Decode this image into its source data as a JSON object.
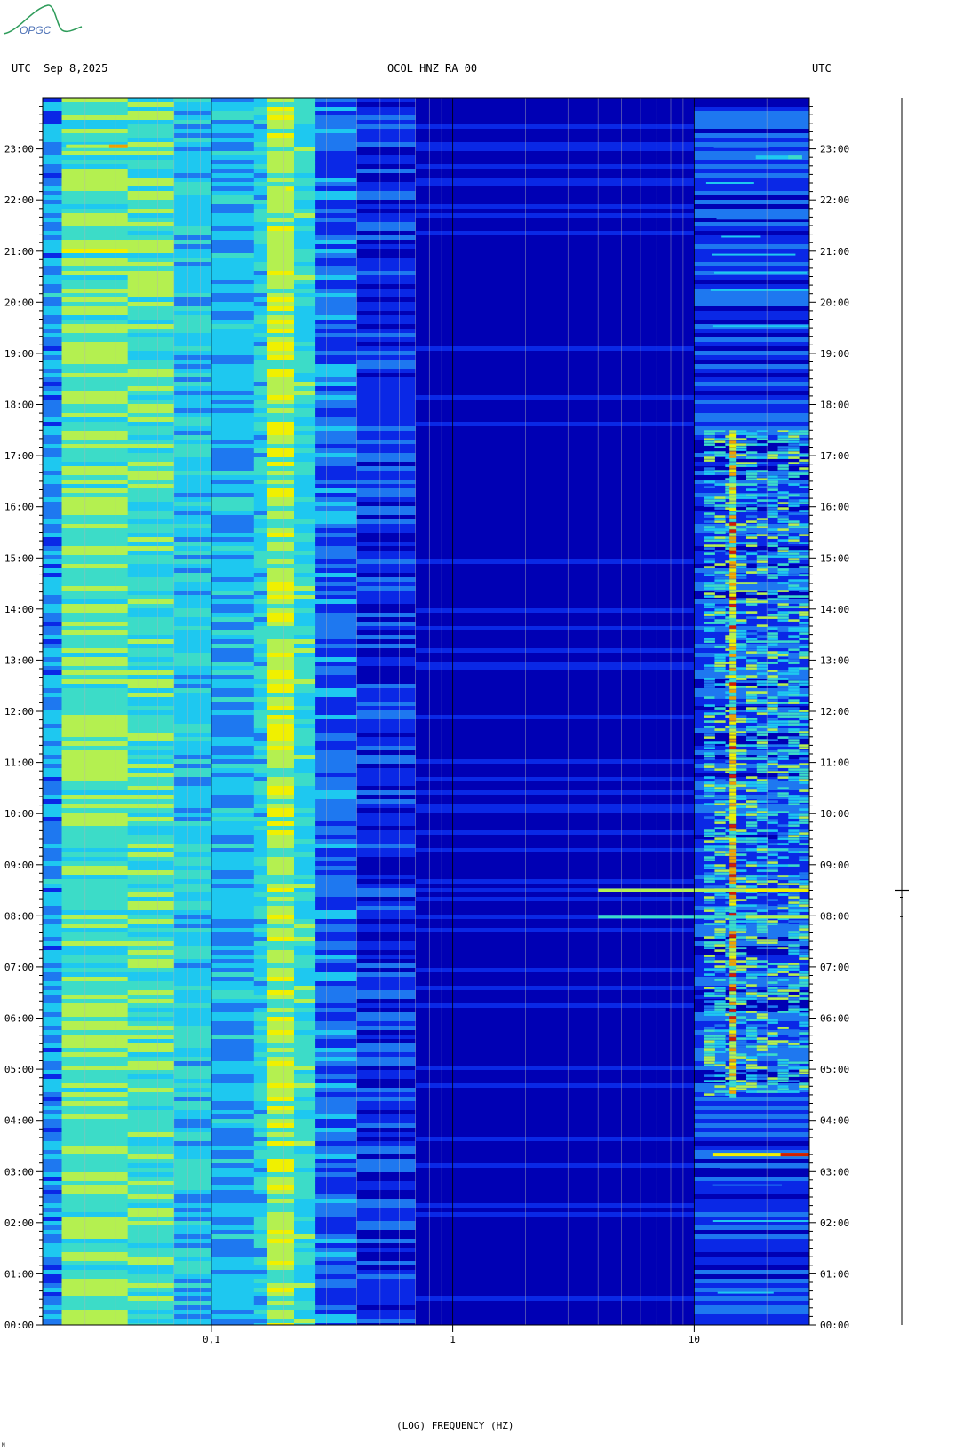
{
  "header": {
    "left": "UTC  Sep 8,2025",
    "center": "OCOL HNZ RA 00",
    "right": "UTC"
  },
  "logo": {
    "text": "OPGC",
    "color": "#2e9c5a",
    "text_color": "#4a6fb5"
  },
  "footer_mark": "M",
  "chart_data": {
    "type": "heatmap",
    "title": "OCOL HNZ RA 00",
    "xlabel": "(LOG) FREQUENCY (HZ)",
    "ylabel": "",
    "x_scale": "log",
    "xlim_hz": [
      0.02,
      30
    ],
    "x_ticks": [
      {
        "value": 0.1,
        "label": "0,1"
      },
      {
        "value": 1,
        "label": "1"
      },
      {
        "value": 10,
        "label": "10"
      }
    ],
    "ylim_hours": [
      0,
      24
    ],
    "y_ticks": [
      "00:00",
      "01:00",
      "02:00",
      "03:00",
      "04:00",
      "05:00",
      "06:00",
      "07:00",
      "08:00",
      "09:00",
      "10:00",
      "11:00",
      "12:00",
      "13:00",
      "14:00",
      "15:00",
      "16:00",
      "17:00",
      "18:00",
      "19:00",
      "20:00",
      "21:00",
      "22:00",
      "23:00"
    ],
    "colormap": [
      "#0000b4",
      "#0a28e6",
      "#1e78f0",
      "#1ec8f0",
      "#3cdcc8",
      "#b4f050",
      "#f0f000",
      "#f0a000",
      "#d21e00"
    ],
    "background_color": "#0000c8",
    "bands": [
      {
        "f1": 0.02,
        "f2": 0.024,
        "level": 0.3
      },
      {
        "f1": 0.024,
        "f2": 0.045,
        "level": 0.55
      },
      {
        "f1": 0.045,
        "f2": 0.07,
        "level": 0.5
      },
      {
        "f1": 0.07,
        "f2": 0.1,
        "level": 0.4
      },
      {
        "f1": 0.1,
        "f2": 0.15,
        "level": 0.33
      },
      {
        "f1": 0.15,
        "f2": 0.17,
        "level": 0.42
      },
      {
        "f1": 0.17,
        "f2": 0.22,
        "level": 0.62
      },
      {
        "f1": 0.22,
        "f2": 0.27,
        "level": 0.45
      },
      {
        "f1": 0.27,
        "f2": 0.4,
        "level": 0.22
      },
      {
        "f1": 0.4,
        "f2": 0.7,
        "level": 0.12
      },
      {
        "f1": 0.7,
        "f2": 10,
        "level": 0.04
      },
      {
        "f1": 10,
        "f2": 30,
        "level": 0.14
      }
    ],
    "events": [
      {
        "time": "23:03",
        "f1": 0.025,
        "f2": 0.045,
        "level": 0.85
      },
      {
        "time": "22:13",
        "f1": 0.17,
        "f2": 0.22,
        "level": 0.8
      },
      {
        "time": "22:50",
        "f1": 18,
        "f2": 28,
        "level": 0.5
      },
      {
        "time": "08:30",
        "f1": 4,
        "f2": 30,
        "level": 0.75
      },
      {
        "time": "07:59",
        "f1": 4,
        "f2": 30,
        "level": 0.65
      },
      {
        "time": "03:20",
        "f1": 12,
        "f2": 30,
        "level": 0.95
      }
    ],
    "hf_activity": {
      "f1": 11,
      "f2": 30,
      "start": "04:30",
      "end": "17:30",
      "peak_level": 0.9,
      "line_hz": 14.5
    }
  }
}
